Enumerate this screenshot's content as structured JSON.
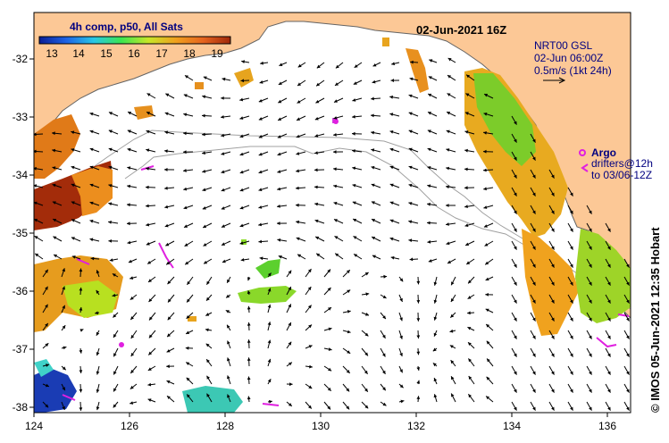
{
  "title": "02-Jun-2021 16Z",
  "colorbar": {
    "title": "4h comp, p50, All Sats",
    "ticks": [
      "13",
      "14",
      "15",
      "16",
      "17",
      "18",
      "19"
    ],
    "colors": [
      "#0a1e96",
      "#1e64e6",
      "#28c8e6",
      "#3ce650",
      "#c8e628",
      "#f0a01e",
      "#e6641e",
      "#a0280a"
    ]
  },
  "current_legend": {
    "line1": "NRT00 GSL",
    "line2": "02-Jun 06:00Z",
    "line3": "0.5m/s (1kt 24h)"
  },
  "argo_legend": {
    "argo_label": "Argo",
    "drifters_label": "drifters@12h",
    "drifters_to": "to 03/06-12Z"
  },
  "credit": "© IMOS 05-Jun-2021 12:35 Hobart",
  "axes": {
    "lon_ticks": [
      "124",
      "126",
      "128",
      "130",
      "132",
      "134",
      "136"
    ],
    "lat_ticks": [
      "-32",
      "-33",
      "-34",
      "-35",
      "-36",
      "-37",
      "-38"
    ]
  },
  "colors": {
    "land": "#fcc896",
    "coast": "#646464",
    "shelf_contour": "#a0a0a0"
  }
}
